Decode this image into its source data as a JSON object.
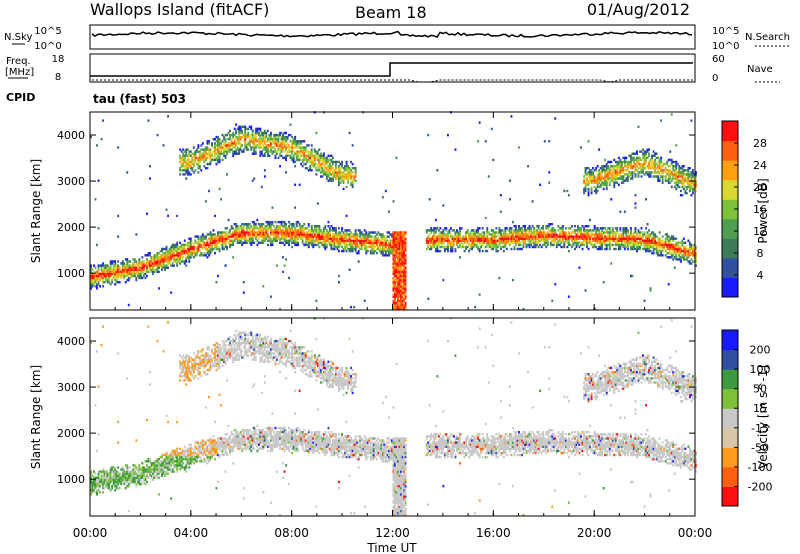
{
  "header": {
    "station": "Wallops Island (fitACF)",
    "beam": "Beam 18",
    "date": "01/Aug/2012"
  },
  "top_panels": {
    "nsky_label": "N.Sky",
    "nsearch_label": "N.Search",
    "freq_label_1": "Freq.",
    "freq_label_2": "[MHz]",
    "nave_label": "Nave",
    "cpid_label": "CPID",
    "cpid_value": "tau (fast) 503",
    "noise_ticks": [
      "10^5",
      "10^0"
    ],
    "freq_ticks": [
      "18",
      "8"
    ],
    "nave_ticks": [
      "60",
      "0"
    ]
  },
  "colors": {
    "power_scale": [
      "#1a1aff",
      "#2f4fa0",
      "#3d7a5a",
      "#4f9e50",
      "#7dc23a",
      "#d8d830",
      "#ffa010",
      "#ff6010",
      "#ff1010"
    ],
    "velocity_scale": [
      "#ff1010",
      "#ff6010",
      "#ff9a20",
      "#d8c8a8",
      "#c8c8c8",
      "#7dc23a",
      "#3d9a40",
      "#2f4fa0",
      "#1a1aff"
    ]
  },
  "chart_data": [
    {
      "type": "heatmap",
      "title": "",
      "xlabel": "",
      "ylabel": "Slant Range [km]",
      "colorbar_label": "Power [dB]",
      "colorbar_ticks": [
        "4",
        "8",
        "12",
        "16",
        "20",
        "24",
        "28"
      ],
      "yticks": [
        "1000",
        "2000",
        "3000",
        "4000"
      ],
      "ylim": [
        200,
        4500
      ],
      "xlim": [
        0,
        24
      ],
      "features": [
        {
          "name": "lower band",
          "x": [
            0,
            2,
            4,
            6,
            8,
            10,
            12,
            13.5,
            16,
            18,
            20,
            22,
            24
          ],
          "y": [
            900,
            1100,
            1500,
            1850,
            1850,
            1700,
            1600,
            1700,
            1700,
            1800,
            1750,
            1700,
            1400
          ]
        },
        {
          "name": "upper band",
          "x": [
            4,
            6,
            8,
            10,
            20,
            22,
            24
          ],
          "y": [
            3400,
            3900,
            3700,
            3100,
            3000,
            3400,
            2900
          ]
        }
      ]
    },
    {
      "type": "heatmap",
      "title": "",
      "xlabel": "Time UT",
      "ylabel": "Slant Range [km]",
      "colorbar_label": "Velocity [m s^-1]",
      "colorbar_ticks": [
        "-200",
        "-100",
        "-50",
        "-15",
        "15",
        "50",
        "100",
        "200"
      ],
      "xticks": [
        "00:00",
        "04:00",
        "08:00",
        "12:00",
        "16:00",
        "20:00",
        "00:00"
      ],
      "yticks": [
        "1000",
        "2000",
        "3000",
        "4000"
      ],
      "ylim": [
        200,
        4500
      ],
      "xlim": [
        0,
        24
      ]
    }
  ]
}
